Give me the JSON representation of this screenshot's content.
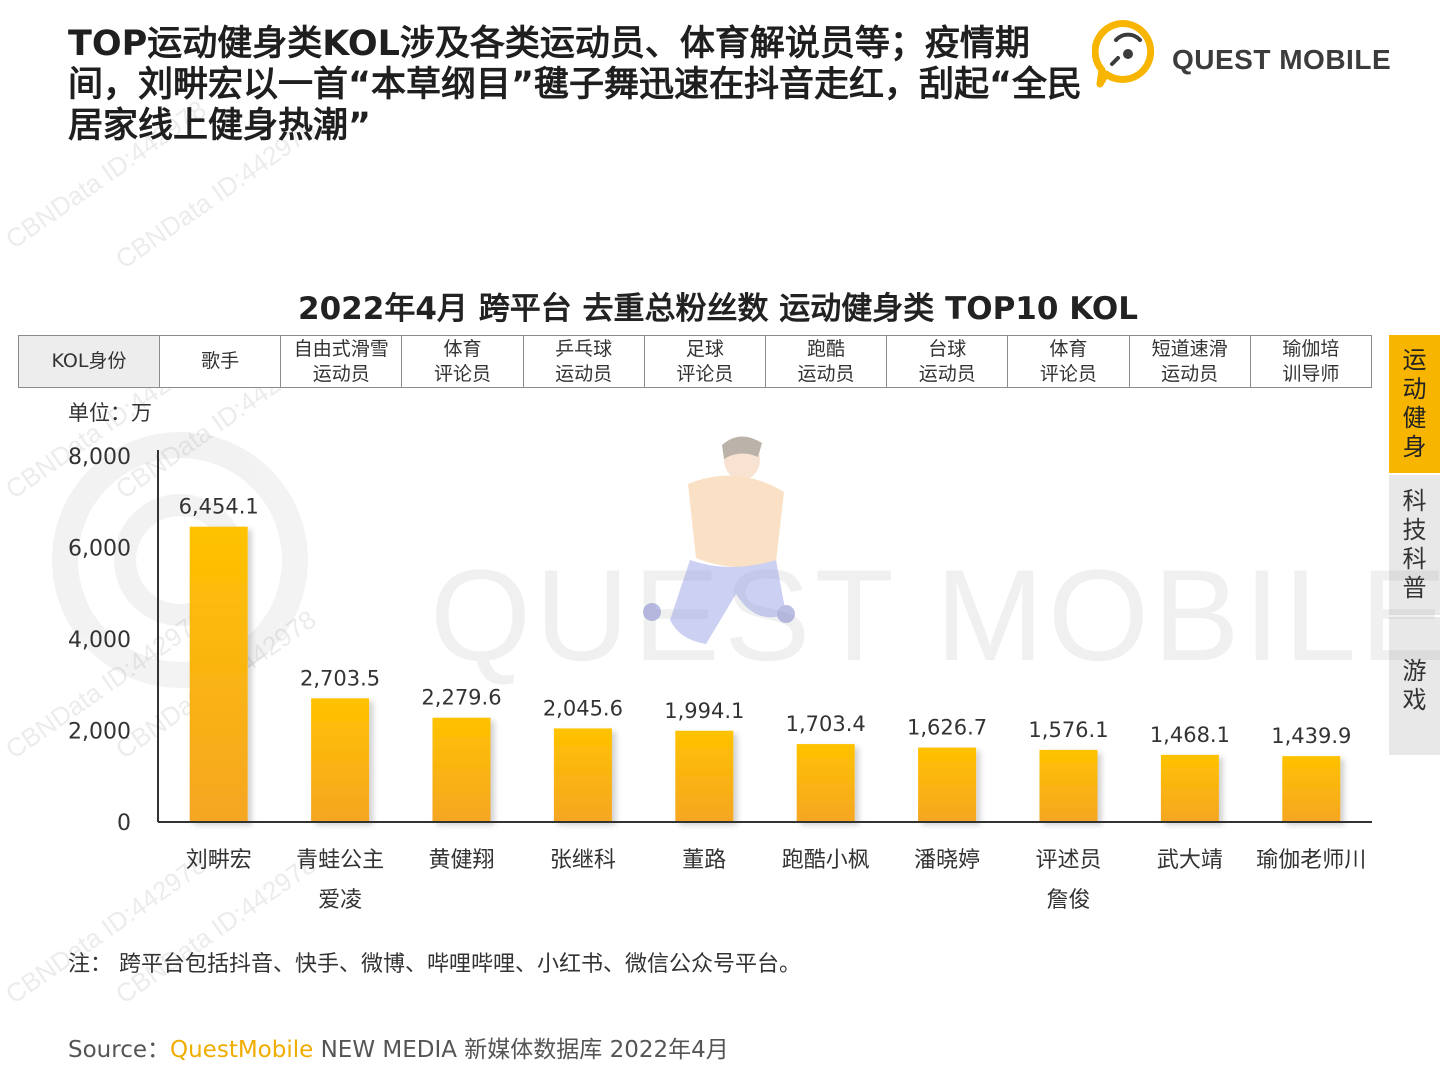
{
  "headline": "TOP运动健身类KOL涉及各类运动员、体育解说员等；疫情期间，刘畊宏以一首“本草纲目”毽子舞迅速在抖音走红，刮起“全民居家线上健身热潮”",
  "logo": {
    "text": "QUEST MOBILE",
    "color": "#f7b500"
  },
  "watermark": {
    "text": "CBNData ID:442978",
    "color": "#ececec"
  },
  "side_tabs": [
    {
      "label": "运动健身",
      "active": true
    },
    {
      "label": "科技科普",
      "active": false
    },
    {
      "label": "游戏",
      "active": false
    }
  ],
  "kol_table": {
    "header": "KOL身份",
    "identities": [
      "歌手",
      "自由式滑雪运动员",
      "体育评论员",
      "乒乓球运动员",
      "足球评论员",
      "跑酷运动员",
      "台球运动员",
      "体育评论员",
      "短道速滑运动员",
      "瑜伽培训导师"
    ]
  },
  "note": "注：  跨平台包括抖音、快手、微博、哔哩哔哩、小红书、微信公众号平台。",
  "source": {
    "prefix": "Source：",
    "brand": "QuestMobile",
    "rest": " NEW MEDIA 新媒体数据库 2022年4月"
  },
  "chart_data": {
    "type": "bar",
    "title": "2022年4月 跨平台 去重总粉丝数 运动健身类 TOP10 KOL",
    "unit_label": "单位：万",
    "categories": [
      "刘畊宏",
      "青蛙公主爱凌",
      "黄健翔",
      "张继科",
      "董路",
      "跑酷小枫",
      "潘晓婷",
      "评述员詹俊",
      "武大靖",
      "瑜伽老师川"
    ],
    "category_lines": [
      [
        "刘畊宏"
      ],
      [
        "青蛙公主",
        "爱凌"
      ],
      [
        "黄健翔"
      ],
      [
        "张继科"
      ],
      [
        "董路"
      ],
      [
        "跑酷小枫"
      ],
      [
        "潘晓婷"
      ],
      [
        "评述员",
        "詹俊"
      ],
      [
        "武大靖"
      ],
      [
        "瑜伽老师川"
      ]
    ],
    "values": [
      6454.1,
      2703.5,
      2279.6,
      2045.6,
      1994.1,
      1703.4,
      1626.7,
      1576.1,
      1468.1,
      1439.9
    ],
    "value_labels": [
      "6,454.1",
      "2,703.5",
      "2,279.6",
      "2,045.6",
      "1,994.1",
      "1,703.4",
      "1,626.7",
      "1,576.1",
      "1,468.1",
      "1,439.9"
    ],
    "ylim": [
      0,
      8000
    ],
    "yticks": [
      0,
      2000,
      4000,
      6000,
      8000
    ],
    "ytick_labels": [
      "0",
      "2,000",
      "4,000",
      "6,000",
      "8,000"
    ],
    "grid": false,
    "legend": "none",
    "bar_color_top": "#ffc200",
    "bar_color_bottom": "#f5a623",
    "axis_color": "#333333"
  }
}
